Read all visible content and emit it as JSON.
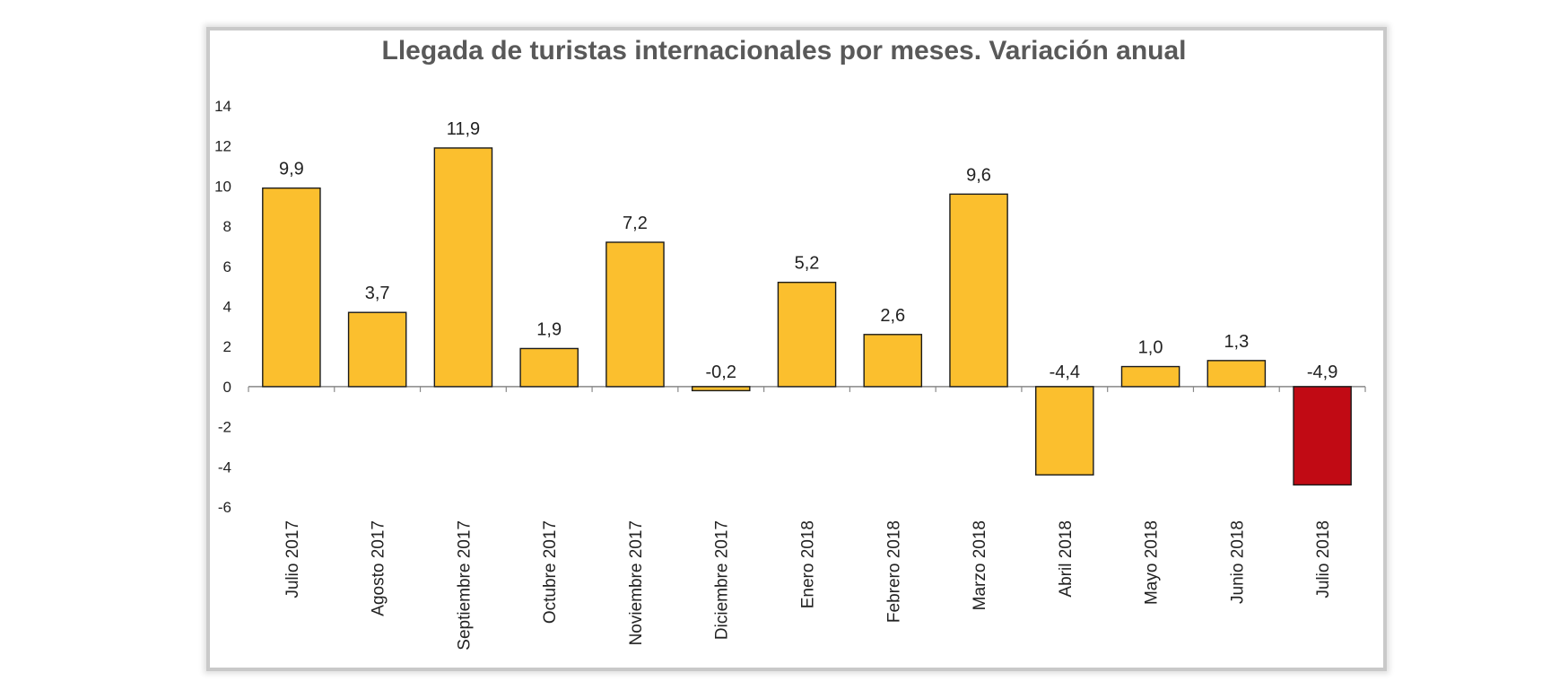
{
  "chart_data": {
    "type": "bar",
    "title": "Llegada de turistas internacionales por meses. Variación anual",
    "xlabel": "",
    "ylabel": "",
    "categories": [
      "Julio 2017",
      "Agosto 2017",
      "Septiembre 2017",
      "Octubre 2017",
      "Noviembre 2017",
      "Diciembre 2017",
      "Enero 2018",
      "Febrero 2018",
      "Marzo 2018",
      "Abril 2018",
      "Mayo 2018",
      "Junio 2018",
      "Julio 2018"
    ],
    "values": [
      9.9,
      3.7,
      11.9,
      1.9,
      7.2,
      -0.2,
      5.2,
      2.6,
      9.6,
      -4.4,
      1.0,
      1.3,
      -4.9
    ],
    "data_labels": [
      "9,9",
      "3,7",
      "11,9",
      "1,9",
      "7,2",
      "-0,2",
      "5,2",
      "2,6",
      "9,6",
      "-4,4",
      "1,0",
      "1,3",
      "-4,9"
    ],
    "ylim": [
      -6,
      14
    ],
    "yticks": [
      14,
      12,
      10,
      8,
      6,
      4,
      2,
      0,
      -2,
      -4,
      -6
    ],
    "grid": false,
    "legend": "none",
    "colors": {
      "bar": "#fbbf2e",
      "highlight_bar": "#c10a14",
      "bar_edge": "#1a1a1a",
      "axis": "#888888"
    },
    "highlight_index": 12
  }
}
